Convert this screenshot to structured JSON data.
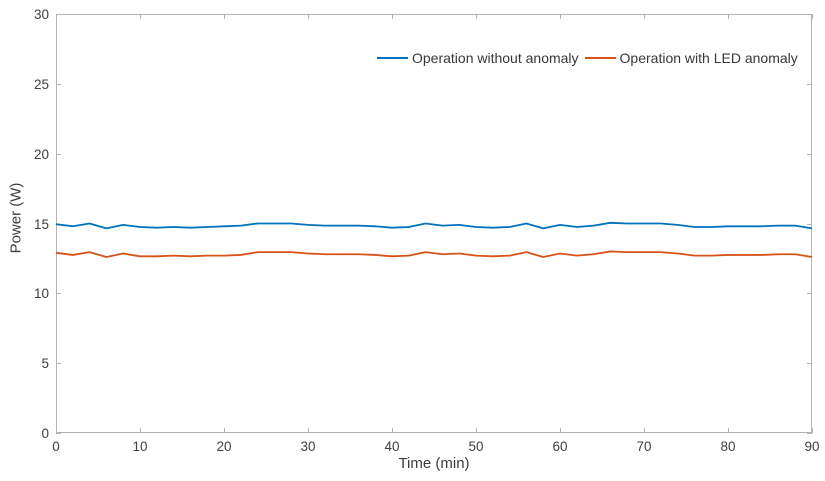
{
  "figure": {
    "background": "#ffffff",
    "axis_color": "#b3b3b3",
    "tick_label_color": "#404040",
    "label_color": "#3d3d3d"
  },
  "chart_data": {
    "type": "line",
    "title": "",
    "xlabel": "Time (min)",
    "ylabel": "Power (W)",
    "xlim": [
      0,
      90
    ],
    "ylim": [
      0,
      30
    ],
    "xticks": [
      0,
      10,
      20,
      30,
      40,
      50,
      60,
      70,
      80,
      90
    ],
    "yticks": [
      0,
      5,
      10,
      15,
      20,
      25,
      30
    ],
    "grid": false,
    "box": true,
    "tick_direction": "in",
    "legend_position": "top-inside-right",
    "x": [
      0,
      2,
      4,
      6,
      8,
      10,
      12,
      14,
      16,
      18,
      20,
      22,
      24,
      26,
      28,
      30,
      32,
      34,
      36,
      38,
      40,
      42,
      44,
      46,
      48,
      50,
      52,
      54,
      56,
      58,
      60,
      62,
      64,
      66,
      68,
      70,
      72,
      74,
      76,
      78,
      80,
      82,
      84,
      86,
      88,
      90
    ],
    "series": [
      {
        "name": "Operation without anomaly",
        "color": "#0072BD",
        "values": [
          14.95,
          14.8,
          15.0,
          14.65,
          14.9,
          14.75,
          14.7,
          14.75,
          14.7,
          14.75,
          14.8,
          14.85,
          15.0,
          15.0,
          15.0,
          14.9,
          14.85,
          14.85,
          14.85,
          14.8,
          14.7,
          14.75,
          15.0,
          14.85,
          14.9,
          14.75,
          14.7,
          14.75,
          15.0,
          14.65,
          14.9,
          14.75,
          14.85,
          15.05,
          15.0,
          15.0,
          15.0,
          14.9,
          14.75,
          14.75,
          14.8,
          14.8,
          14.8,
          14.85,
          14.85,
          14.65
        ]
      },
      {
        "name": "Operation with LED anomaly",
        "color": "#D95319",
        "values": [
          12.9,
          12.75,
          12.95,
          12.6,
          12.85,
          12.65,
          12.65,
          12.7,
          12.65,
          12.7,
          12.7,
          12.75,
          12.95,
          12.95,
          12.95,
          12.85,
          12.8,
          12.8,
          12.8,
          12.75,
          12.65,
          12.7,
          12.95,
          12.8,
          12.85,
          12.7,
          12.65,
          12.7,
          12.95,
          12.6,
          12.85,
          12.7,
          12.8,
          13.0,
          12.95,
          12.95,
          12.95,
          12.85,
          12.7,
          12.7,
          12.75,
          12.75,
          12.75,
          12.8,
          12.8,
          12.6
        ]
      }
    ]
  }
}
